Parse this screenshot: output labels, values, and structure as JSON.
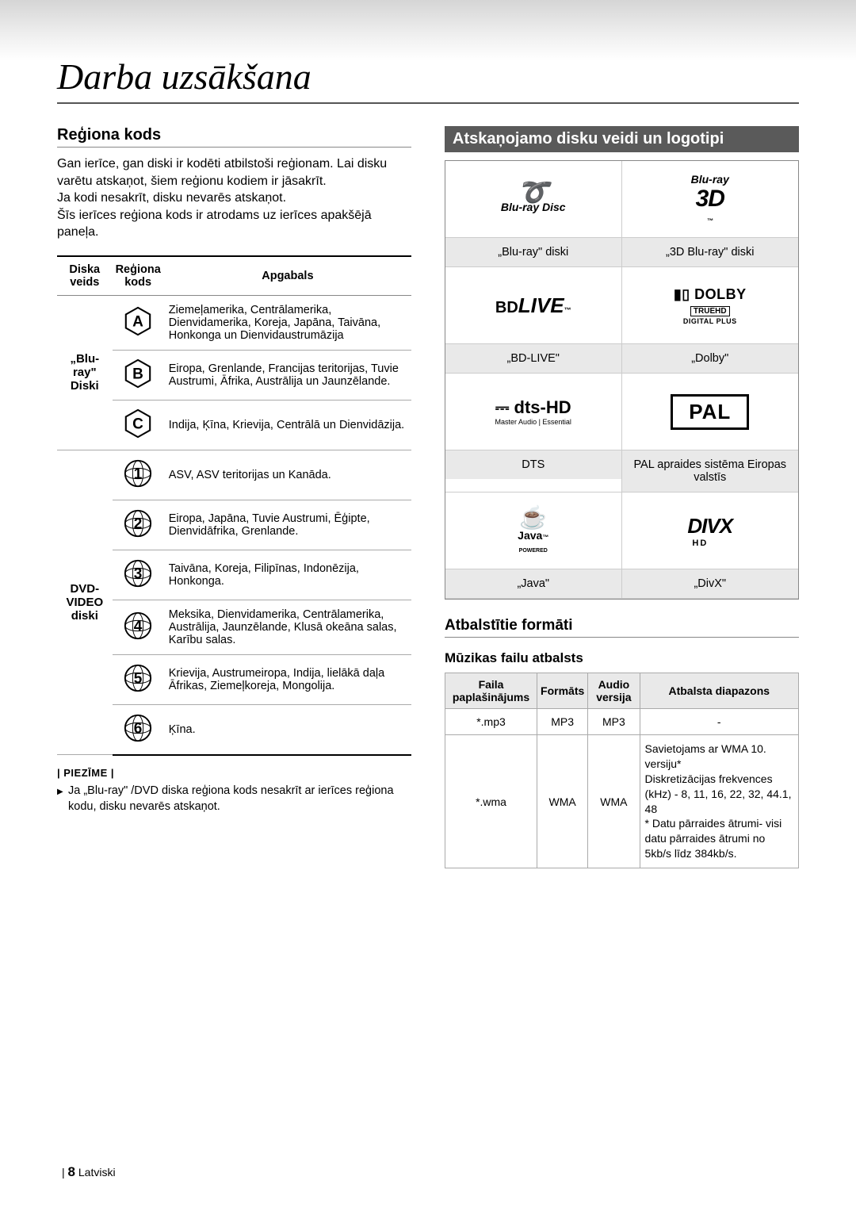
{
  "title": "Darba uzsākšana",
  "left": {
    "heading": "Reģiona kods",
    "intro": "Gan ierīce, gan diski ir kodēti atbilstoši reģionam. Lai disku varētu atskaņot, šiem reģionu kodiem ir jāsakrīt.\nJa kodi nesakrīt, disku nevarēs atskaņot.\nŠīs ierīces reģiona kods ir atrodams uz ierīces apakšējā paneļa.",
    "region_table": {
      "headers": [
        "Diska veids",
        "Reģiona kods",
        "Apgabals"
      ],
      "groups": [
        {
          "type": "„Blu-ray\"\nDiski",
          "rows": [
            {
              "code": "A",
              "shape": "hex",
              "area": "Ziemeļamerika, Centrālamerika, Dienvidamerika, Koreja, Japāna, Taivāna, Honkonga un Dienvidaustrumāzija"
            },
            {
              "code": "B",
              "shape": "hex",
              "area": "Eiropa, Grenlande, Francijas teritorijas, Tuvie Austrumi, Āfrika, Austrālija un Jaunzēlande."
            },
            {
              "code": "C",
              "shape": "hex",
              "area": "Indija, Ķīna, Krievija, Centrālā un Dienvidāzija."
            }
          ]
        },
        {
          "type": "DVD-VIDEO\ndiski",
          "rows": [
            {
              "code": "1",
              "shape": "globe",
              "area": "ASV, ASV teritorijas un Kanāda."
            },
            {
              "code": "2",
              "shape": "globe",
              "area": "Eiropa, Japāna, Tuvie Austrumi, Ēģipte, Dienvidāfrika, Grenlande."
            },
            {
              "code": "3",
              "shape": "globe",
              "area": "Taivāna, Koreja, Filipīnas, Indonēzija, Honkonga."
            },
            {
              "code": "4",
              "shape": "globe",
              "area": "Meksika, Dienvidamerika, Centrālamerika, Austrālija, Jaunzēlande, Klusā okeāna salas, Karību salas."
            },
            {
              "code": "5",
              "shape": "globe",
              "area": "Krievija, Austrumeiropa, Indija, lielākā daļa Āfrikas, Ziemeļkoreja, Mongolija."
            },
            {
              "code": "6",
              "shape": "globe",
              "area": "Ķīna."
            }
          ]
        }
      ]
    },
    "note_label": "| PIEZĪME |",
    "note": "Ja „Blu-ray\" /DVD diska reģiona kods nesakrīt ar ierīces reģiona kodu, disku nevarēs atskaņot."
  },
  "right": {
    "heading": "Atskaņojamo disku veidi un logotipi",
    "logos": [
      {
        "label": "„Blu-ray\" diski",
        "kind": "bluray"
      },
      {
        "label": "„3D Blu-ray\" diski",
        "kind": "bd3d"
      },
      {
        "label": "„BD-LIVE\"",
        "kind": "bdlive"
      },
      {
        "label": "„Dolby\"",
        "kind": "dolby"
      },
      {
        "label": "DTS",
        "kind": "dts"
      },
      {
        "label": "PAL apraides sistēma Eiropas valstīs",
        "kind": "pal"
      },
      {
        "label": "„Java\"",
        "kind": "java"
      },
      {
        "label": "„DivX\"",
        "kind": "divx"
      }
    ],
    "formats_heading": "Atbalstītie formāti",
    "music_heading": "Mūzikas failu atbalsts",
    "music_table": {
      "headers": [
        "Faila paplašinājums",
        "Formāts",
        "Audio versija",
        "Atbalsta diapazons"
      ],
      "rows": [
        {
          "ext": "*.mp3",
          "fmt": "MP3",
          "codec": "MP3",
          "range": "-"
        },
        {
          "ext": "*.wma",
          "fmt": "WMA",
          "codec": "WMA",
          "range": "Savietojams ar  WMA 10. versiju*\nDiskretizācijas frekvences (kHz) - 8, 11, 16, 22, 32, 44.1, 48\n* Datu pārraides ātrumi- visi datu pārraides ātrumi no 5kb/s līdz 384kb/s."
        }
      ]
    }
  },
  "footer": {
    "page": "8",
    "lang": "Latviski"
  }
}
